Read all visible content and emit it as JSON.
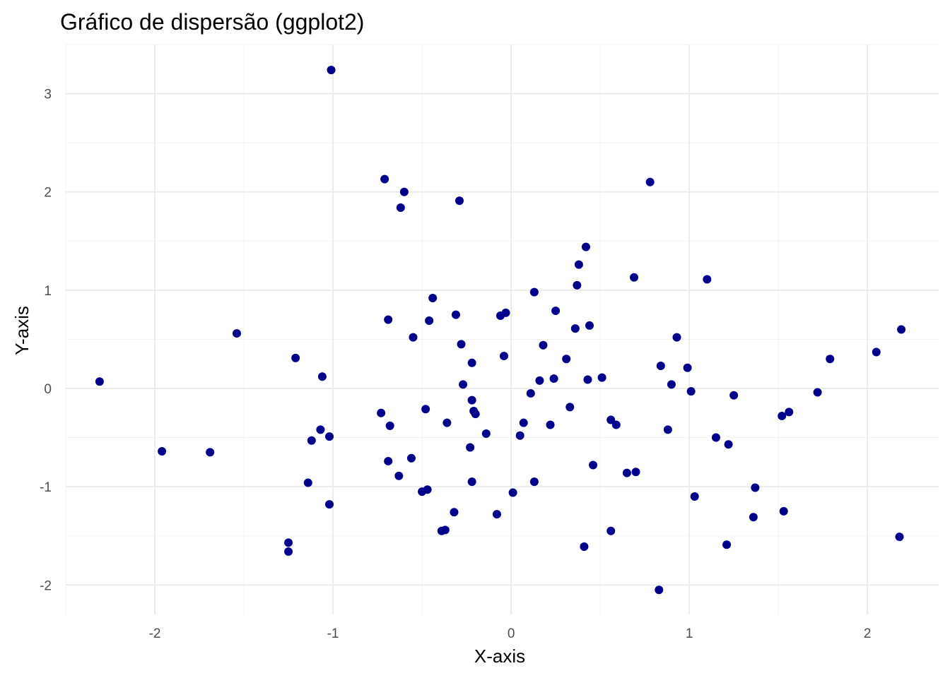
{
  "chart_data": {
    "type": "scatter",
    "title": "Gráfico de dispersão (ggplot2)",
    "xlabel": "X-axis",
    "ylabel": "Y-axis",
    "xlim": [
      -2.5,
      2.4
    ],
    "ylim": [
      -2.3,
      3.5
    ],
    "x_ticks": [
      -2,
      -1,
      0,
      1,
      2
    ],
    "y_ticks": [
      -2,
      -1,
      0,
      1,
      2,
      3
    ],
    "x_tick_labels": [
      "-2",
      "-1",
      "0",
      "1",
      "2"
    ],
    "y_tick_labels": [
      "-2",
      "-1",
      "0",
      "1",
      "2",
      "3"
    ],
    "grid": true,
    "point_color": "#00008B",
    "points": [
      {
        "x": -1.01,
        "y": 3.24
      },
      {
        "x": -0.71,
        "y": 2.13
      },
      {
        "x": -0.6,
        "y": 2.0
      },
      {
        "x": -0.62,
        "y": 1.84
      },
      {
        "x": -0.29,
        "y": 1.91
      },
      {
        "x": 0.78,
        "y": 2.1
      },
      {
        "x": 0.42,
        "y": 1.44
      },
      {
        "x": 0.38,
        "y": 1.26
      },
      {
        "x": 0.69,
        "y": 1.13
      },
      {
        "x": 1.1,
        "y": 1.11
      },
      {
        "x": 0.37,
        "y": 1.05
      },
      {
        "x": 0.13,
        "y": 0.98
      },
      {
        "x": -0.44,
        "y": 0.92
      },
      {
        "x": 0.25,
        "y": 0.79
      },
      {
        "x": -0.03,
        "y": 0.77
      },
      {
        "x": -0.31,
        "y": 0.75
      },
      {
        "x": -0.06,
        "y": 0.74
      },
      {
        "x": -0.69,
        "y": 0.7
      },
      {
        "x": -0.46,
        "y": 0.69
      },
      {
        "x": 0.44,
        "y": 0.64
      },
      {
        "x": 0.36,
        "y": 0.61
      },
      {
        "x": 2.19,
        "y": 0.6
      },
      {
        "x": -1.54,
        "y": 0.56
      },
      {
        "x": -0.55,
        "y": 0.52
      },
      {
        "x": 0.93,
        "y": 0.52
      },
      {
        "x": -0.28,
        "y": 0.45
      },
      {
        "x": 0.18,
        "y": 0.44
      },
      {
        "x": 2.05,
        "y": 0.37
      },
      {
        "x": -0.04,
        "y": 0.33
      },
      {
        "x": -1.21,
        "y": 0.31
      },
      {
        "x": 1.79,
        "y": 0.3
      },
      {
        "x": 0.31,
        "y": 0.3
      },
      {
        "x": -0.22,
        "y": 0.26
      },
      {
        "x": 0.84,
        "y": 0.23
      },
      {
        "x": 0.99,
        "y": 0.21
      },
      {
        "x": -1.06,
        "y": 0.12
      },
      {
        "x": 0.51,
        "y": 0.11
      },
      {
        "x": 0.24,
        "y": 0.1
      },
      {
        "x": 0.43,
        "y": 0.09
      },
      {
        "x": 0.16,
        "y": 0.08
      },
      {
        "x": -2.31,
        "y": 0.07
      },
      {
        "x": 0.9,
        "y": 0.04
      },
      {
        "x": -0.27,
        "y": 0.04
      },
      {
        "x": 1.01,
        "y": -0.03
      },
      {
        "x": 1.72,
        "y": -0.04
      },
      {
        "x": 0.11,
        "y": -0.05
      },
      {
        "x": 1.25,
        "y": -0.07
      },
      {
        "x": -0.22,
        "y": -0.12
      },
      {
        "x": 0.33,
        "y": -0.19
      },
      {
        "x": -0.48,
        "y": -0.21
      },
      {
        "x": -0.21,
        "y": -0.23
      },
      {
        "x": -0.2,
        "y": -0.26
      },
      {
        "x": -0.73,
        "y": -0.25
      },
      {
        "x": 1.56,
        "y": -0.24
      },
      {
        "x": 1.52,
        "y": -0.28
      },
      {
        "x": 0.56,
        "y": -0.32
      },
      {
        "x": -0.36,
        "y": -0.35
      },
      {
        "x": 0.07,
        "y": -0.35
      },
      {
        "x": 0.59,
        "y": -0.37
      },
      {
        "x": 0.22,
        "y": -0.37
      },
      {
        "x": -0.68,
        "y": -0.38
      },
      {
        "x": -1.07,
        "y": -0.42
      },
      {
        "x": 0.88,
        "y": -0.42
      },
      {
        "x": -0.14,
        "y": -0.46
      },
      {
        "x": 0.05,
        "y": -0.48
      },
      {
        "x": -1.02,
        "y": -0.49
      },
      {
        "x": 1.15,
        "y": -0.5
      },
      {
        "x": -1.12,
        "y": -0.53
      },
      {
        "x": 1.22,
        "y": -0.57
      },
      {
        "x": -0.23,
        "y": -0.6
      },
      {
        "x": -1.96,
        "y": -0.64
      },
      {
        "x": -1.69,
        "y": -0.65
      },
      {
        "x": -0.56,
        "y": -0.71
      },
      {
        "x": -0.69,
        "y": -0.74
      },
      {
        "x": 0.46,
        "y": -0.78
      },
      {
        "x": 0.7,
        "y": -0.85
      },
      {
        "x": 0.65,
        "y": -0.86
      },
      {
        "x": -0.63,
        "y": -0.89
      },
      {
        "x": 0.13,
        "y": -0.95
      },
      {
        "x": -0.22,
        "y": -0.95
      },
      {
        "x": -1.14,
        "y": -0.96
      },
      {
        "x": 1.37,
        "y": -1.01
      },
      {
        "x": -0.47,
        "y": -1.03
      },
      {
        "x": -0.5,
        "y": -1.05
      },
      {
        "x": 0.01,
        "y": -1.06
      },
      {
        "x": 1.03,
        "y": -1.1
      },
      {
        "x": -1.02,
        "y": -1.18
      },
      {
        "x": 1.53,
        "y": -1.25
      },
      {
        "x": -0.32,
        "y": -1.26
      },
      {
        "x": -0.08,
        "y": -1.28
      },
      {
        "x": 1.36,
        "y": -1.31
      },
      {
        "x": -0.37,
        "y": -1.44
      },
      {
        "x": -0.39,
        "y": -1.45
      },
      {
        "x": 0.56,
        "y": -1.45
      },
      {
        "x": 2.18,
        "y": -1.51
      },
      {
        "x": -1.25,
        "y": -1.57
      },
      {
        "x": 1.21,
        "y": -1.59
      },
      {
        "x": 0.41,
        "y": -1.61
      },
      {
        "x": -1.25,
        "y": -1.66
      },
      {
        "x": 0.83,
        "y": -2.05
      }
    ]
  }
}
